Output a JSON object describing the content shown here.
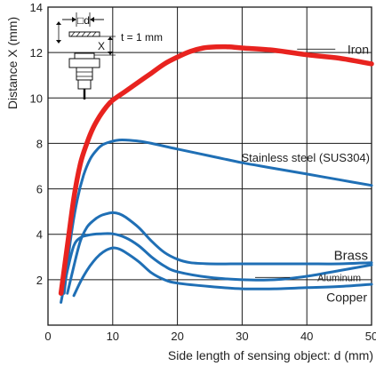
{
  "chart_data": {
    "type": "line",
    "xlabel": "Side length of sensing object: d (mm)",
    "ylabel": "Distance X (mm)",
    "xlim": [
      0,
      50
    ],
    "ylim": [
      0,
      14
    ],
    "xticks": [
      0,
      10,
      20,
      30,
      40,
      50
    ],
    "yticks": [
      2,
      4,
      6,
      8,
      10,
      12,
      14
    ],
    "grid": true,
    "series": [
      {
        "name": "Iron",
        "color": "#e8231f",
        "x": [
          2,
          3,
          4,
          5,
          6,
          7,
          8,
          9,
          10,
          12,
          14,
          16,
          18,
          20,
          22,
          24,
          26,
          28,
          30,
          35,
          40,
          45,
          50
        ],
        "y": [
          1.4,
          3.5,
          5.6,
          7.1,
          8.0,
          8.7,
          9.2,
          9.6,
          9.9,
          10.3,
          10.7,
          11.1,
          11.5,
          11.8,
          12.05,
          12.2,
          12.25,
          12.25,
          12.2,
          12.1,
          11.9,
          11.75,
          11.5
        ]
      },
      {
        "name": "Stainless steel (SUS304)",
        "color": "#1f6fb5",
        "x": [
          2.5,
          3.5,
          4.5,
          5.5,
          6.5,
          7.5,
          8.5,
          10,
          11,
          12,
          14,
          16,
          20,
          25,
          30,
          35,
          40,
          45,
          50
        ],
        "y": [
          1.4,
          3.8,
          5.5,
          6.6,
          7.3,
          7.7,
          7.95,
          8.1,
          8.15,
          8.15,
          8.1,
          8.0,
          7.75,
          7.45,
          7.15,
          6.9,
          6.65,
          6.4,
          6.15
        ]
      },
      {
        "name": "Brass",
        "color": "#1f6fb5",
        "x": [
          3,
          4,
          5,
          6,
          7,
          8,
          9,
          10,
          11,
          12,
          14,
          16,
          18,
          20,
          22,
          25,
          30,
          35,
          40,
          45,
          50
        ],
        "y": [
          1.4,
          2.6,
          3.7,
          4.3,
          4.6,
          4.8,
          4.9,
          4.95,
          4.9,
          4.75,
          4.3,
          3.7,
          3.2,
          2.9,
          2.75,
          2.7,
          2.7,
          2.7,
          2.7,
          2.7,
          2.75
        ]
      },
      {
        "name": "Aluminum",
        "color": "#1f6fb5",
        "x": [
          2,
          3,
          4,
          5,
          6,
          7,
          8,
          10,
          12,
          14,
          16,
          18,
          20,
          25,
          30,
          35,
          40,
          45,
          50
        ],
        "y": [
          1.0,
          2.4,
          3.5,
          3.85,
          3.95,
          4.0,
          4.02,
          4.02,
          3.85,
          3.5,
          3.0,
          2.6,
          2.35,
          2.1,
          2.0,
          2.0,
          2.15,
          2.4,
          2.65
        ]
      },
      {
        "name": "Copper",
        "color": "#1f6fb5",
        "x": [
          4,
          5,
          6,
          7,
          8,
          9,
          10,
          11,
          12,
          14,
          16,
          18,
          20,
          25,
          30,
          35,
          40,
          45,
          50
        ],
        "y": [
          1.3,
          1.9,
          2.4,
          2.8,
          3.1,
          3.3,
          3.4,
          3.35,
          3.2,
          2.8,
          2.3,
          2.0,
          1.85,
          1.7,
          1.6,
          1.6,
          1.65,
          1.7,
          1.8
        ]
      }
    ],
    "annotations": {
      "iron_label": "Iron",
      "stainless_label": "Stainless steel (SUS304)",
      "brass_label": "Brass",
      "aluminum_label": "Aluminum",
      "copper_label": "Copper"
    },
    "inset_diagram": {
      "square_label": "□d",
      "thickness_label": "t = 1 mm",
      "distance_label": "X"
    }
  }
}
